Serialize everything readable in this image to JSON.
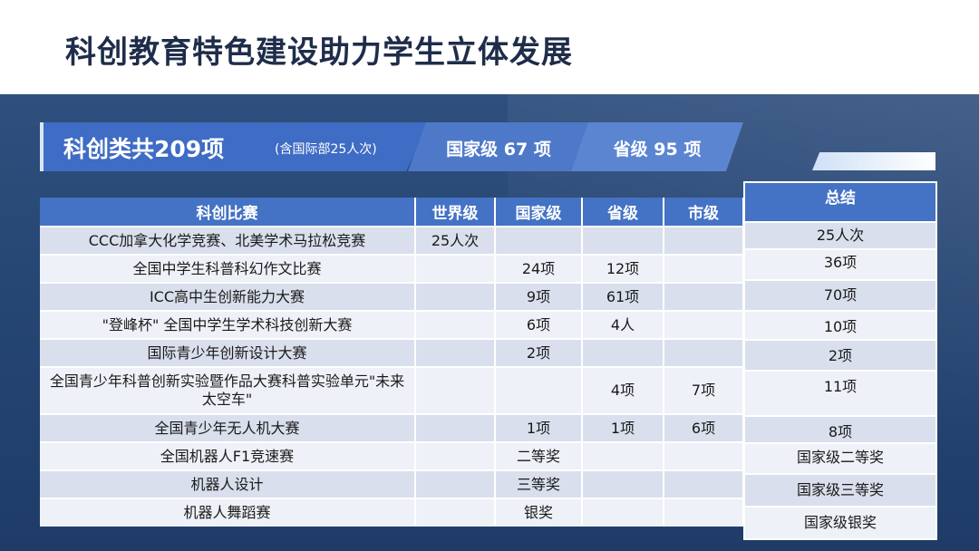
{
  "title": "科创教育特色建设助力学生立体发展",
  "banner": {
    "main": "科创类共209项",
    "note": "(含国际部25人次)",
    "national": "国家级 67 项",
    "provincial": "省级 95 项"
  },
  "table": {
    "headers": [
      "科创比赛",
      "世界级",
      "国家级",
      "省级",
      "市级"
    ],
    "rows": [
      [
        "CCC加拿大化学竞赛、北美学术马拉松竞赛",
        "25人次",
        "",
        "",
        ""
      ],
      [
        "全国中学生科普科幻作文比赛",
        "",
        "24项",
        "12项",
        ""
      ],
      [
        "ICC高中生创新能力大赛",
        "",
        "9项",
        "61项",
        ""
      ],
      [
        "\"登峰杯\" 全国中学生学术科技创新大赛",
        "",
        "6项",
        "4人",
        ""
      ],
      [
        "国际青少年创新设计大赛",
        "",
        "2项",
        "",
        ""
      ],
      [
        "全国青少年科普创新实验暨作品大赛科普实验单元\"未来太空车\"",
        "",
        "",
        "4项",
        "7项"
      ],
      [
        "全国青少年无人机大赛",
        "",
        "1项",
        "1项",
        "6项"
      ],
      [
        "全国机器人F1竞速赛",
        "",
        "二等奖",
        "",
        ""
      ],
      [
        "机器人设计",
        "",
        "三等奖",
        "",
        ""
      ],
      [
        "机器人舞蹈赛",
        "",
        "银奖",
        "",
        ""
      ]
    ]
  },
  "summary": {
    "header": "总结",
    "items": [
      "25人次",
      "36项",
      "70项",
      "10项",
      "2项",
      "11项",
      "8项",
      "国家级二等奖",
      "国家级三等奖",
      "国家级银奖"
    ]
  }
}
